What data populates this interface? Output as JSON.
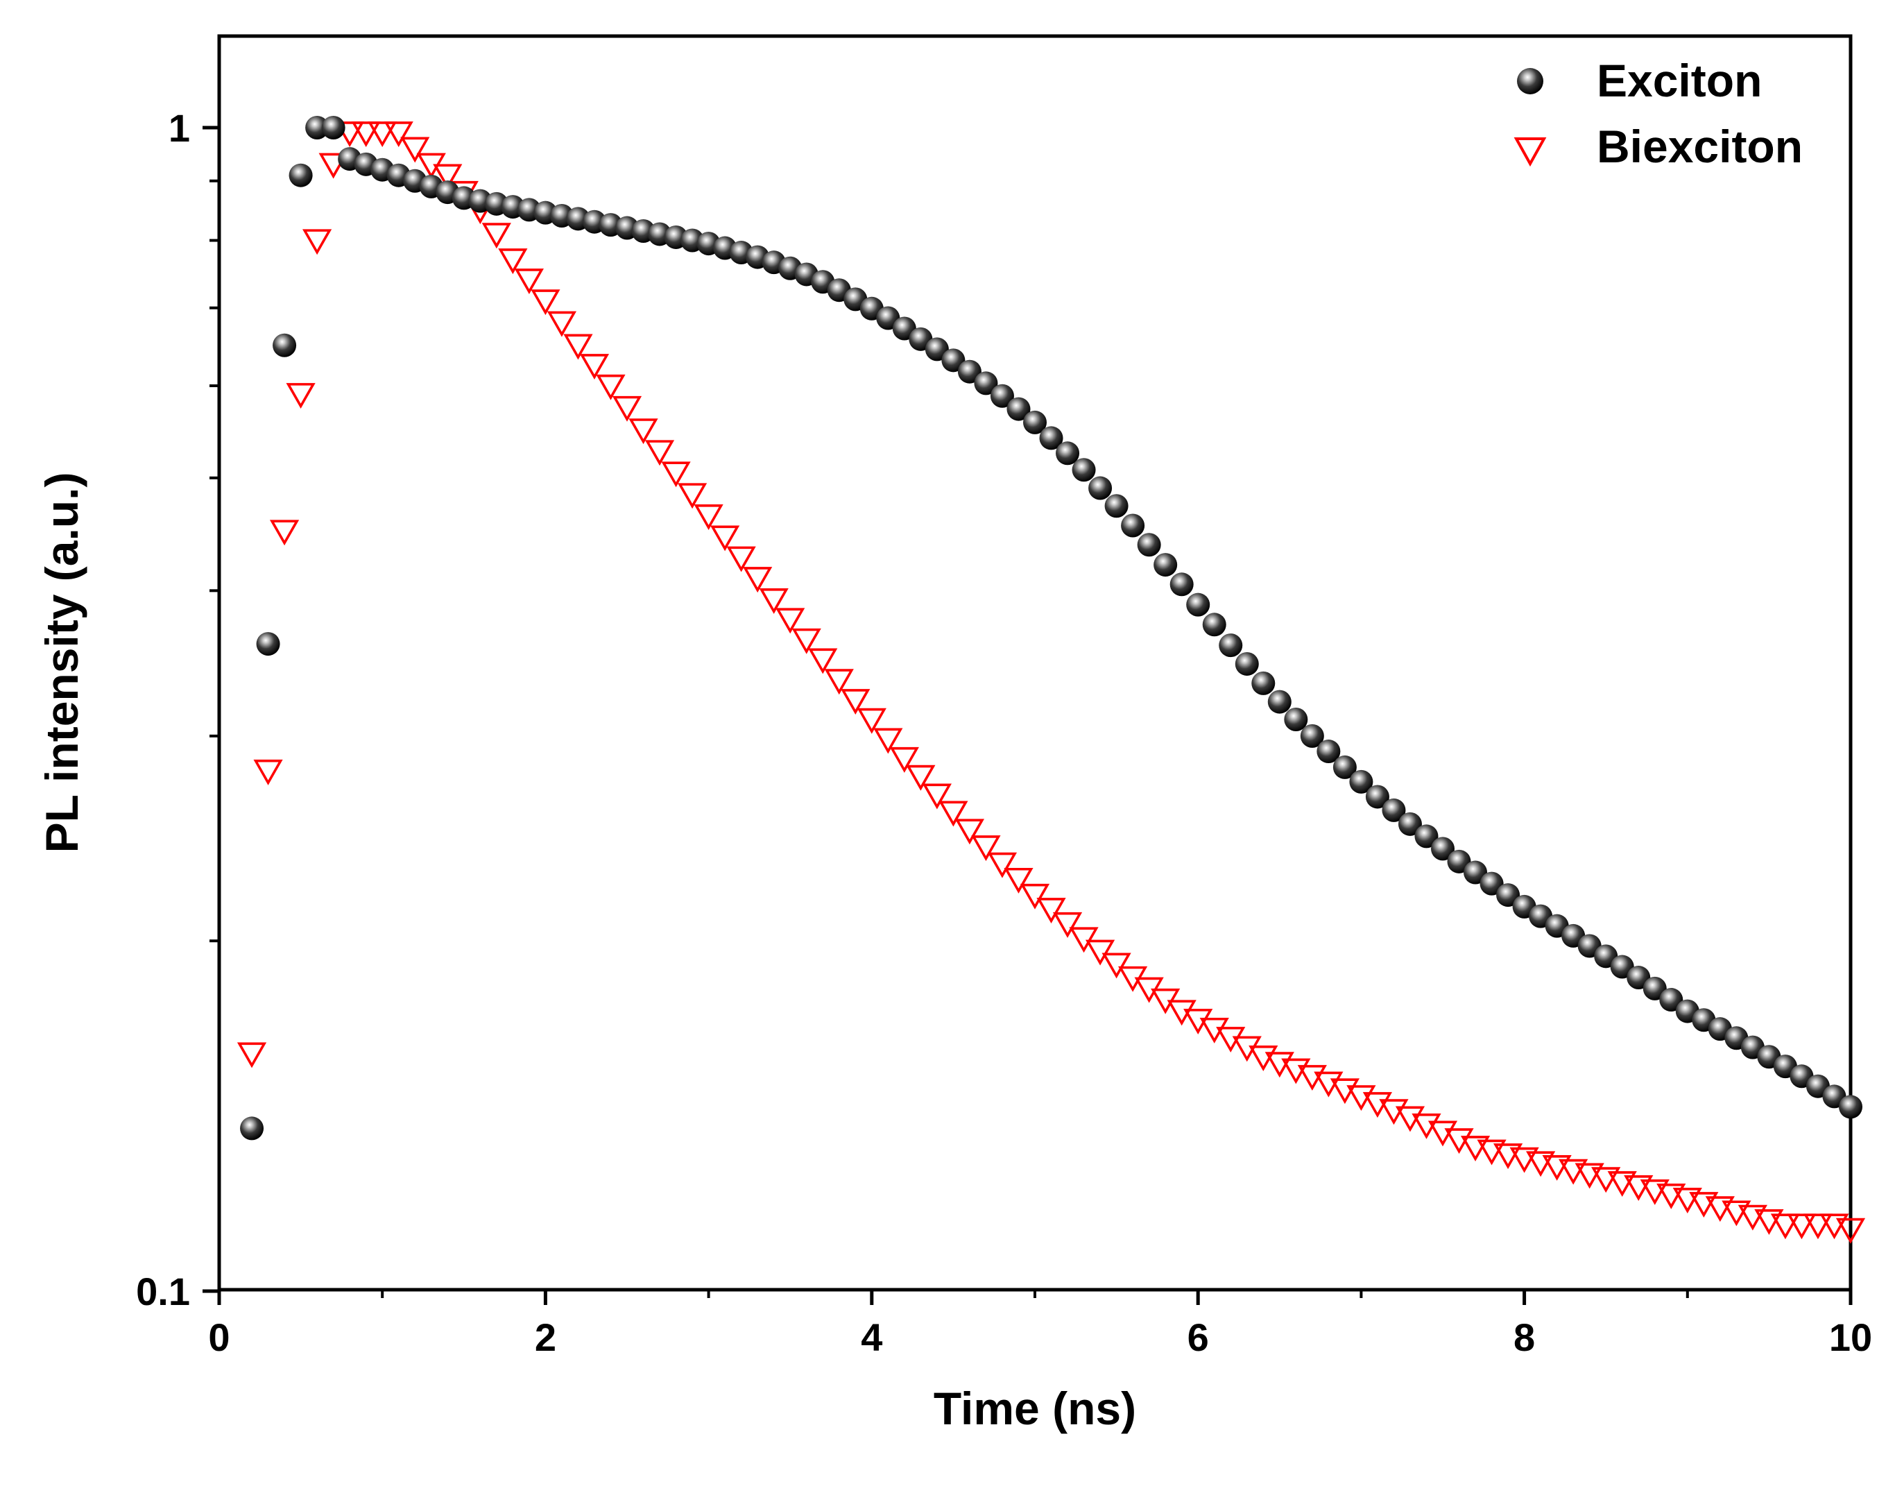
{
  "chart_data": {
    "type": "scatter",
    "title": "",
    "xlabel": "Time (ns)",
    "ylabel": "PL intensity (a.u.)",
    "xlim": [
      0,
      10
    ],
    "ylim": [
      0.1,
      1.22
    ],
    "yscale": "log",
    "grid": false,
    "legend_position": "top-right",
    "x_ticks": [
      0,
      2,
      4,
      6,
      8,
      10
    ],
    "x_tick_labels": [
      "0",
      "2",
      "4",
      "6",
      "8",
      "10"
    ],
    "y_ticks": [
      0.1,
      1
    ],
    "y_tick_labels": [
      "0.1",
      "1"
    ],
    "series": [
      {
        "name": "Exciton",
        "marker": "sphere",
        "color": "#000000",
        "x": [
          0.2,
          0.3,
          0.4,
          0.5,
          0.6,
          0.7,
          0.8,
          0.9,
          1.0,
          1.1,
          1.2,
          1.3,
          1.4,
          1.5,
          1.6,
          1.7,
          1.8,
          1.9,
          2.0,
          2.1,
          2.2,
          2.3,
          2.4,
          2.5,
          2.6,
          2.7,
          2.8,
          2.9,
          3.0,
          3.1,
          3.2,
          3.3,
          3.4,
          3.5,
          3.6,
          3.7,
          3.8,
          3.9,
          4.0,
          4.1,
          4.2,
          4.3,
          4.4,
          4.5,
          4.6,
          4.7,
          4.8,
          4.9,
          5.0,
          5.1,
          5.2,
          5.3,
          5.4,
          5.5,
          5.6,
          5.7,
          5.8,
          5.9,
          6.0,
          6.1,
          6.2,
          6.3,
          6.4,
          6.5,
          6.6,
          6.7,
          6.8,
          6.9,
          7.0,
          7.1,
          7.2,
          7.3,
          7.4,
          7.5,
          7.6,
          7.7,
          7.8,
          7.9,
          8.0,
          8.1,
          8.2,
          8.3,
          8.4,
          8.5,
          8.6,
          8.7,
          8.8,
          8.9,
          9.0,
          9.1,
          9.2,
          9.3,
          9.4,
          9.5,
          9.6,
          9.7,
          9.8,
          9.9,
          10.0
        ],
        "values": [
          0.138,
          0.36,
          0.65,
          0.91,
          1.0,
          1.0,
          0.94,
          0.93,
          0.92,
          0.91,
          0.9,
          0.89,
          0.88,
          0.87,
          0.865,
          0.86,
          0.855,
          0.85,
          0.845,
          0.84,
          0.835,
          0.83,
          0.825,
          0.82,
          0.815,
          0.81,
          0.805,
          0.8,
          0.795,
          0.788,
          0.781,
          0.774,
          0.766,
          0.757,
          0.748,
          0.737,
          0.725,
          0.712,
          0.699,
          0.686,
          0.672,
          0.658,
          0.645,
          0.631,
          0.617,
          0.603,
          0.588,
          0.573,
          0.558,
          0.541,
          0.525,
          0.508,
          0.49,
          0.473,
          0.455,
          0.438,
          0.421,
          0.405,
          0.389,
          0.374,
          0.359,
          0.346,
          0.333,
          0.321,
          0.31,
          0.3,
          0.291,
          0.282,
          0.274,
          0.266,
          0.259,
          0.252,
          0.246,
          0.24,
          0.234,
          0.229,
          0.224,
          0.219,
          0.214,
          0.21,
          0.206,
          0.202,
          0.198,
          0.194,
          0.19,
          0.186,
          0.182,
          0.178,
          0.174,
          0.171,
          0.168,
          0.165,
          0.162,
          0.159,
          0.156,
          0.153,
          0.15,
          0.147,
          0.144
        ]
      },
      {
        "name": "Biexciton",
        "marker": "triangle-down-open",
        "color": "#ff0000",
        "x": [
          0.2,
          0.3,
          0.4,
          0.5,
          0.6,
          0.7,
          0.8,
          0.9,
          1.0,
          1.1,
          1.2,
          1.3,
          1.4,
          1.5,
          1.6,
          1.7,
          1.8,
          1.9,
          2.0,
          2.1,
          2.2,
          2.3,
          2.4,
          2.5,
          2.6,
          2.7,
          2.8,
          2.9,
          3.0,
          3.1,
          3.2,
          3.3,
          3.4,
          3.5,
          3.6,
          3.7,
          3.8,
          3.9,
          4.0,
          4.1,
          4.2,
          4.3,
          4.4,
          4.5,
          4.6,
          4.7,
          4.8,
          4.9,
          5.0,
          5.1,
          5.2,
          5.3,
          5.4,
          5.5,
          5.6,
          5.7,
          5.8,
          5.9,
          6.0,
          6.1,
          6.2,
          6.3,
          6.4,
          6.5,
          6.6,
          6.7,
          6.8,
          6.9,
          7.0,
          7.1,
          7.2,
          7.3,
          7.4,
          7.5,
          7.6,
          7.7,
          7.8,
          7.9,
          8.0,
          8.1,
          8.2,
          8.3,
          8.4,
          8.5,
          8.6,
          8.7,
          8.8,
          8.9,
          9.0,
          9.1,
          9.2,
          9.3,
          9.4,
          9.5,
          9.6,
          9.7,
          9.8,
          9.9,
          10.0
        ],
        "values": [
          0.16,
          0.28,
          0.45,
          0.59,
          0.8,
          0.93,
          0.99,
          0.99,
          0.99,
          0.99,
          0.96,
          0.93,
          0.91,
          0.88,
          0.85,
          0.81,
          0.77,
          0.74,
          0.71,
          0.68,
          0.65,
          0.625,
          0.6,
          0.575,
          0.55,
          0.527,
          0.505,
          0.484,
          0.464,
          0.445,
          0.427,
          0.41,
          0.393,
          0.378,
          0.363,
          0.349,
          0.335,
          0.322,
          0.31,
          0.298,
          0.287,
          0.277,
          0.267,
          0.258,
          0.249,
          0.241,
          0.233,
          0.226,
          0.219,
          0.213,
          0.207,
          0.201,
          0.196,
          0.191,
          0.186,
          0.182,
          0.178,
          0.174,
          0.171,
          0.168,
          0.165,
          0.162,
          0.159,
          0.157,
          0.155,
          0.153,
          0.151,
          0.149,
          0.147,
          0.145,
          0.143,
          0.141,
          0.139,
          0.137,
          0.135,
          0.133,
          0.132,
          0.131,
          0.13,
          0.129,
          0.128,
          0.127,
          0.126,
          0.125,
          0.124,
          0.123,
          0.122,
          0.121,
          0.12,
          0.119,
          0.118,
          0.117,
          0.116,
          0.115,
          0.114,
          0.114,
          0.114,
          0.114,
          0.113
        ]
      }
    ]
  }
}
